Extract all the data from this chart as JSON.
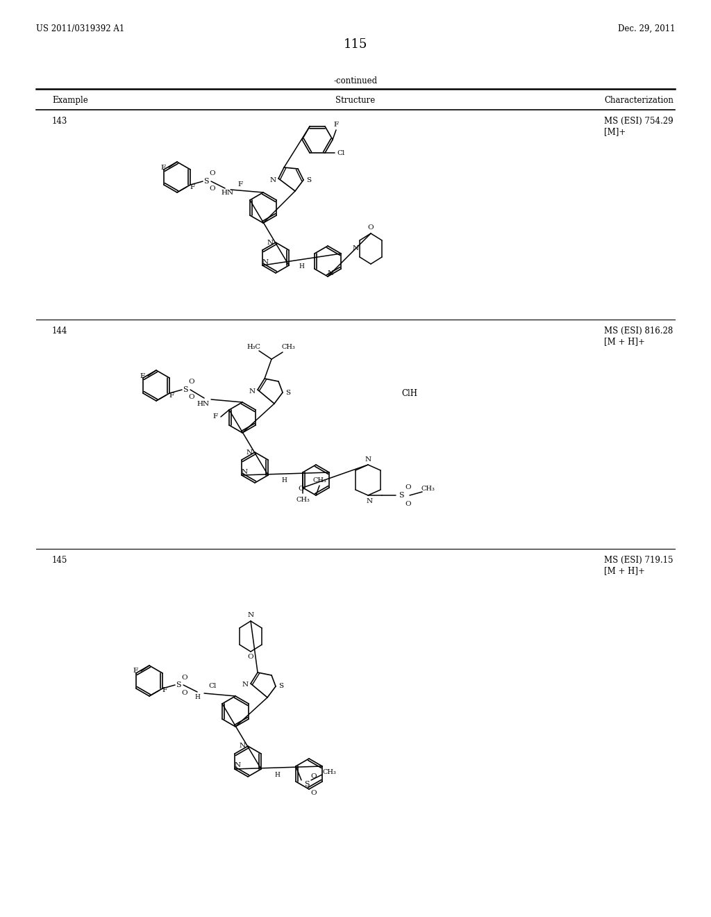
{
  "page_number": "115",
  "patent_number": "US 2011/0319392 A1",
  "patent_date": "Dec. 29, 2011",
  "continued_label": "-continued",
  "col_headers": [
    "Example",
    "Structure",
    "Characterization"
  ],
  "examples": [
    {
      "number": "143",
      "char": "MS (ESI) 754.29\n[M]+"
    },
    {
      "number": "144",
      "char": "MS (ESI) 816.28\n[M + H]+"
    },
    {
      "number": "145",
      "char": "MS (ESI) 719.15\n[M + H]+"
    }
  ],
  "background_color": "#ffffff",
  "text_color": "#000000",
  "font_size_header": 8.5,
  "font_size_body": 8.5,
  "font_size_page_num": 13,
  "font_size_patent": 8.5
}
